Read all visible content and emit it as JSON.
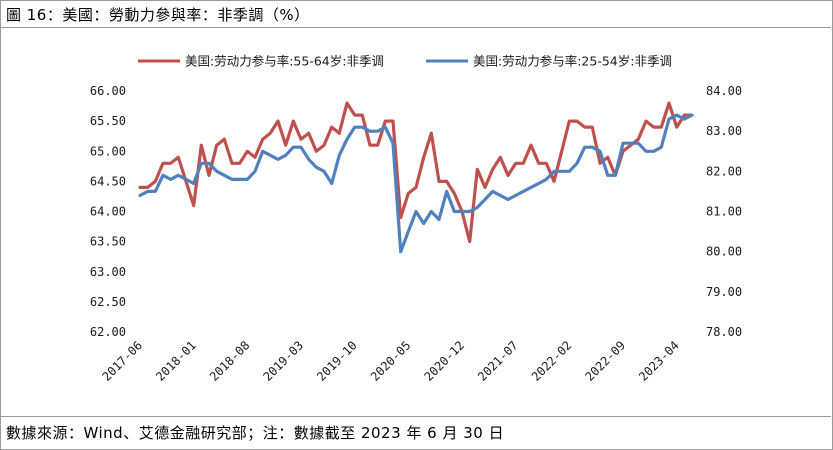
{
  "header": {
    "title": "圖 16：美國：勞動力參與率：非季調（%）"
  },
  "footer": {
    "source": "數據來源：Wind、艾德金融研究部；注：數據截至 2023 年 6 月 30 日"
  },
  "chart_data": {
    "type": "line",
    "title": "圖 16：美國：勞動力參與率：非季調（%）",
    "legend_position": "top",
    "grid": false,
    "y_left": {
      "min": 62.0,
      "max": 66.0,
      "ticks": [
        "66.00",
        "65.50",
        "65.00",
        "64.50",
        "64.00",
        "63.50",
        "63.00",
        "62.50",
        "62.00"
      ]
    },
    "y_right": {
      "min": 78.0,
      "max": 84.0,
      "ticks": [
        "84.00",
        "83.00",
        "82.00",
        "81.00",
        "80.00",
        "79.00",
        "78.00"
      ]
    },
    "x_tick_labels": [
      "2017-06",
      "2018-01",
      "2018-08",
      "2019-03",
      "2019-10",
      "2020-05",
      "2020-12",
      "2021-07",
      "2022-02",
      "2022-09",
      "2023-04"
    ],
    "x": [
      "2017-06",
      "2017-07",
      "2017-08",
      "2017-09",
      "2017-10",
      "2017-11",
      "2017-12",
      "2018-01",
      "2018-02",
      "2018-03",
      "2018-04",
      "2018-05",
      "2018-06",
      "2018-07",
      "2018-08",
      "2018-09",
      "2018-10",
      "2018-11",
      "2018-12",
      "2019-01",
      "2019-02",
      "2019-03",
      "2019-04",
      "2019-05",
      "2019-06",
      "2019-07",
      "2019-08",
      "2019-09",
      "2019-10",
      "2019-11",
      "2019-12",
      "2020-01",
      "2020-02",
      "2020-03",
      "2020-04",
      "2020-05",
      "2020-06",
      "2020-07",
      "2020-08",
      "2020-09",
      "2020-10",
      "2020-11",
      "2020-12",
      "2021-01",
      "2021-02",
      "2021-03",
      "2021-04",
      "2021-05",
      "2021-06",
      "2021-07",
      "2021-08",
      "2021-09",
      "2021-10",
      "2021-11",
      "2021-12",
      "2022-01",
      "2022-02",
      "2022-03",
      "2022-04",
      "2022-05",
      "2022-06",
      "2022-07",
      "2022-08",
      "2022-09",
      "2022-10",
      "2022-11",
      "2022-12",
      "2023-01",
      "2023-02",
      "2023-03",
      "2023-04",
      "2023-05",
      "2023-06"
    ],
    "series": [
      {
        "name": "美国:劳动力参与率:55-64岁:非季调",
        "axis": "left",
        "color": "#c0504d",
        "values": [
          64.4,
          64.4,
          64.5,
          64.8,
          64.8,
          64.9,
          64.5,
          64.1,
          65.1,
          64.6,
          65.1,
          65.2,
          64.8,
          64.8,
          65.0,
          64.9,
          65.2,
          65.3,
          65.5,
          65.1,
          65.5,
          65.2,
          65.3,
          65.0,
          65.1,
          65.4,
          65.3,
          65.8,
          65.6,
          65.6,
          65.1,
          65.1,
          65.5,
          65.5,
          63.9,
          64.3,
          64.4,
          64.9,
          65.3,
          64.5,
          64.5,
          64.3,
          64.0,
          63.5,
          64.7,
          64.4,
          64.7,
          64.9,
          64.6,
          64.8,
          64.8,
          65.1,
          64.8,
          64.8,
          64.5,
          65.0,
          65.5,
          65.5,
          65.4,
          65.4,
          64.8,
          64.9,
          64.6,
          65.0,
          65.1,
          65.2,
          65.5,
          65.4,
          65.4,
          65.8,
          65.4,
          65.6,
          65.6
        ]
      },
      {
        "name": "美国:劳动力参与率:25-54岁:非季调",
        "axis": "right",
        "color": "#4f81bd",
        "values": [
          81.4,
          81.5,
          81.5,
          81.9,
          81.8,
          81.9,
          81.8,
          81.7,
          82.2,
          82.2,
          82.0,
          81.9,
          81.8,
          81.8,
          81.8,
          82.0,
          82.5,
          82.4,
          82.3,
          82.4,
          82.6,
          82.6,
          82.3,
          82.1,
          82.0,
          81.7,
          82.4,
          82.8,
          83.1,
          83.1,
          83.0,
          83.0,
          83.1,
          82.7,
          80.0,
          80.5,
          81.0,
          80.7,
          81.0,
          80.8,
          81.5,
          81.0,
          81.0,
          81.0,
          81.1,
          81.3,
          81.5,
          81.4,
          81.3,
          81.4,
          81.5,
          81.6,
          81.7,
          81.8,
          82.0,
          82.0,
          82.0,
          82.2,
          82.6,
          82.6,
          82.5,
          81.9,
          81.9,
          82.7,
          82.7,
          82.7,
          82.5,
          82.5,
          82.6,
          83.3,
          83.4,
          83.3,
          83.4
        ]
      }
    ]
  }
}
